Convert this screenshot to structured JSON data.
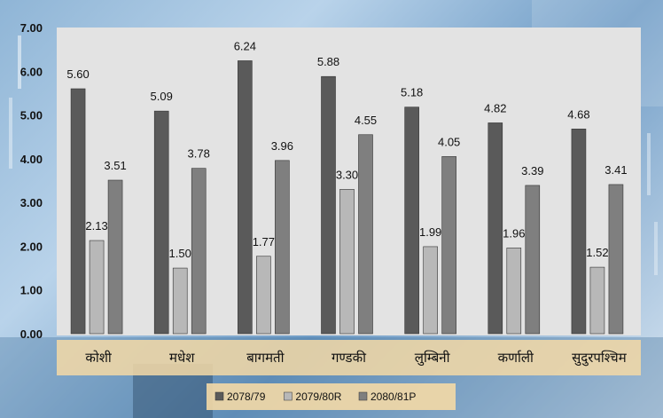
{
  "chart_data": {
    "type": "bar",
    "categories": [
      "कोशी",
      "मधेश",
      "बागमती",
      "गण्डकी",
      "लुम्बिनी",
      "कर्णाली",
      "सुदुरपश्चिम"
    ],
    "series": [
      {
        "name": "2078/79",
        "values": [
          5.6,
          5.09,
          6.24,
          5.88,
          5.18,
          4.82,
          4.68
        ],
        "value_labels": [
          "5.60",
          "5.09",
          "6.24",
          "5.88",
          "5.18",
          "4.82",
          "4.68"
        ],
        "color": "#5a5a5a"
      },
      {
        "name": "2079/80R",
        "values": [
          2.13,
          1.5,
          1.77,
          3.3,
          1.99,
          1.96,
          1.52
        ],
        "value_labels": [
          "2.13",
          "1.50",
          "1.77",
          "3.30",
          "1.99",
          "1.96",
          "1.52"
        ],
        "color": "#b8b8b8"
      },
      {
        "name": "2080/81P",
        "values": [
          3.51,
          3.78,
          3.96,
          4.55,
          4.05,
          3.39,
          3.41
        ],
        "value_labels": [
          "3.51",
          "3.78",
          "3.96",
          "4.55",
          "4.05",
          "3.39",
          "3.41"
        ],
        "color": "#7f7f7f"
      }
    ],
    "y_ticks": [
      "0.00",
      "1.00",
      "2.00",
      "3.00",
      "4.00",
      "5.00",
      "6.00",
      "7.00"
    ],
    "ylim": [
      0,
      7
    ],
    "grid": false,
    "legend_position": "bottom",
    "plot_background": "#e3e3e3",
    "label_background": "#f4d9a6"
  }
}
